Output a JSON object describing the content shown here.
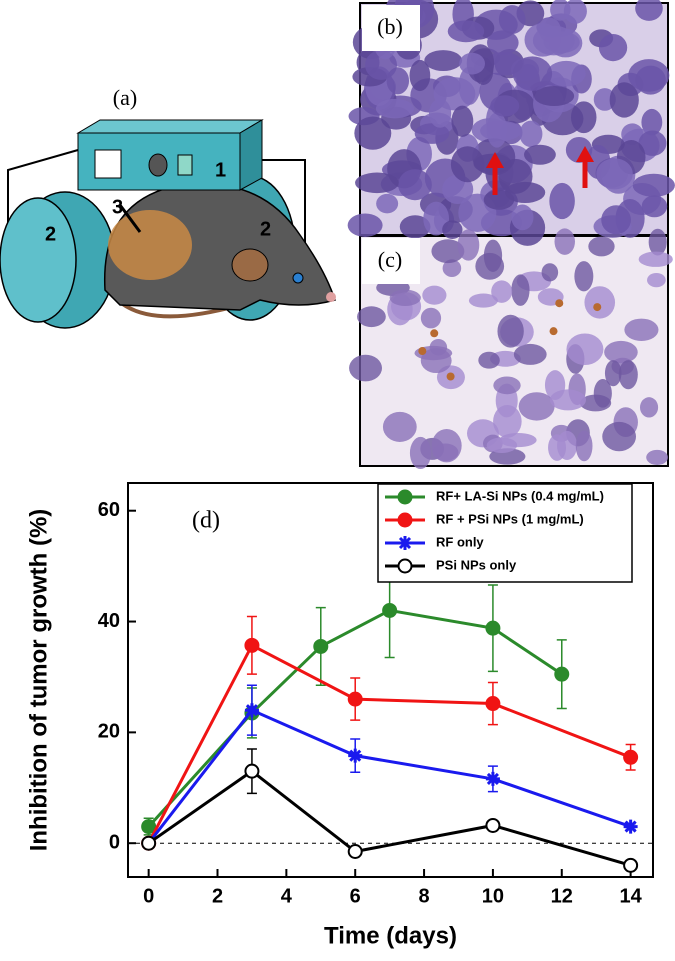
{
  "figure": {
    "panel_labels": [
      "(a)",
      "(b)",
      "(c)"
    ],
    "device_labels": [
      "1",
      "2",
      "2",
      "3"
    ]
  },
  "chart_data": {
    "type": "line",
    "annotation": "(d)",
    "x_label": "Time (days)",
    "y_label": "Inhibition of tumor growth (%)",
    "xlim": [
      -0.6,
      14.65
    ],
    "ylim": [
      -6.1,
      65
    ],
    "xticks": [
      0,
      2,
      4,
      6,
      8,
      10,
      12,
      14
    ],
    "yticks": [
      0,
      20,
      40,
      60
    ],
    "zero_line": "dashed",
    "series": [
      {
        "name": "RF+ LA-Si NPs (0.4 mg/mL)",
        "color": "#2b8a2b",
        "marker": "circle",
        "x": [
          0,
          3,
          5,
          7,
          10,
          12
        ],
        "values": [
          3,
          23.5,
          35.5,
          42,
          38.8,
          30.5
        ],
        "errors": [
          1.5,
          4.5,
          7,
          8.5,
          7.8,
          6.2
        ]
      },
      {
        "name": "RF + PSi NPs (1 mg/mL)",
        "color": "#f01414",
        "marker": "circle",
        "x": [
          0,
          3,
          6,
          10,
          14
        ],
        "values": [
          0,
          35.7,
          26,
          25.2,
          15.5
        ],
        "errors": [
          0.5,
          5.2,
          3.8,
          3.8,
          2.3
        ]
      },
      {
        "name": "RF only",
        "color": "#1a1aee",
        "marker": "asterisk",
        "x": [
          0,
          3,
          6,
          10,
          14
        ],
        "values": [
          0,
          24,
          15.8,
          11.6,
          3
        ],
        "errors": [
          0.5,
          4.5,
          3,
          2.3,
          0.5
        ]
      },
      {
        "name": "PSi NPs only",
        "color": "#000000",
        "marker": "open-circle",
        "x": [
          0,
          3,
          6,
          10,
          14
        ],
        "values": [
          0,
          13,
          -1.5,
          3.2,
          -4
        ],
        "errors": [
          0.5,
          4,
          0.6,
          0.6,
          0.8
        ]
      }
    ]
  }
}
